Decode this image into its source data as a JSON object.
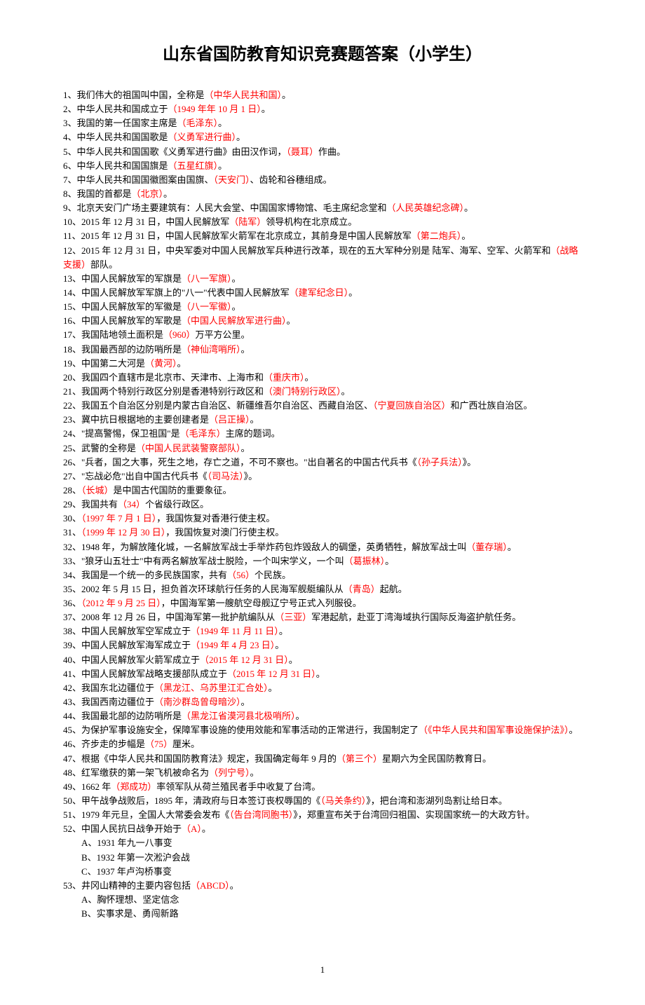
{
  "title": "山东省国防教育知识竞赛题答案（小学生）",
  "items": [
    {
      "num": "1",
      "pre": "、我们伟大的祖国叫中国，全称是",
      "ans": "（中华人民共和国）",
      "post": "。"
    },
    {
      "num": "2",
      "pre": "、中华人民共和国成立于",
      "ans": "（1949 年年 10 月 1 日）",
      "post": "。"
    },
    {
      "num": "3",
      "pre": "、我国的第一任国家主席是",
      "ans": "（毛泽东）",
      "post": "。"
    },
    {
      "num": "4",
      "pre": "、中华人民共和国国歌是",
      "ans": "（义勇军进行曲）",
      "post": "。"
    },
    {
      "num": "5",
      "pre": "、中华人民共和国国歌《义勇军进行曲》由田汉作词，",
      "ans": "（聂耳）",
      "post": "作曲。"
    },
    {
      "num": "6",
      "pre": "、中华人民共和国国旗是",
      "ans": "（五星红旗）",
      "post": "。"
    },
    {
      "num": "7",
      "pre": "、中华人民共和国国徽图案由国旗、",
      "ans": "（天安门）",
      "post": "、齿轮和谷穗组成。"
    },
    {
      "num": "8",
      "pre": "、我国的首都是",
      "ans": "（北京）",
      "post": "。"
    },
    {
      "num": "9",
      "pre": "、北京天安门广场主要建筑有：人民大会堂、中国国家博物馆、毛主席纪念堂和",
      "ans": "（人民英雄纪念碑）",
      "post": "。"
    },
    {
      "num": "10",
      "pre": "、2015 年 12 月 31 日，中国人民解放军",
      "ans": "（陆军）",
      "post": "领导机构在北京成立。"
    },
    {
      "num": "11",
      "pre": "、2015 年 12 月 31 日，中国人民解放军火箭军在北京成立，其前身是中国人民解放军",
      "ans": "（第二炮兵）",
      "post": "。"
    },
    {
      "num": "12",
      "pre": "、2015 年 12 月 31 日，中央军委对中国人民解放军兵种进行改革，现在的五大军种分别是  陆军、海军、空军、火箭军和",
      "ans": "（战略支援）",
      "post": "部队。"
    },
    {
      "num": "13",
      "pre": "、中国人民解放军的军旗是",
      "ans": "（八一军旗）",
      "post": "。"
    },
    {
      "num": "14",
      "pre": "、中国人民解放军军旗上的\"八一\"代表中国人民解放军",
      "ans": "（建军纪念日）",
      "post": "。"
    },
    {
      "num": "15",
      "pre": "、中国人民解放军的军徽是",
      "ans": "（八一军徽）",
      "post": "。"
    },
    {
      "num": "16",
      "pre": "、中国人民解放军的军歌是",
      "ans": "（中国人民解放军进行曲）",
      "post": "。"
    },
    {
      "num": "17",
      "pre": "、我国陆地领土面积是",
      "ans": "（960）",
      "post": "万平方公里。"
    },
    {
      "num": "18",
      "pre": "、我国最西部的边防哨所是",
      "ans": "（神仙湾哨所）",
      "post": "。"
    },
    {
      "num": "19",
      "pre": "、中国第二大河是",
      "ans": "（黄河）",
      "post": "。"
    },
    {
      "num": "20",
      "pre": "、我国四个直辖市是北京市、天津市、上海市和",
      "ans": "（重庆市）",
      "post": "。"
    },
    {
      "num": "21",
      "pre": "、我国两个特别行政区分别是香港特别行政区和",
      "ans": "（澳门特别行政区）",
      "post": "。"
    },
    {
      "num": "22",
      "pre": "、我国五个自治区分别是内蒙古自治区、新疆维吾尔自治区、西藏自治区、",
      "ans": "（宁夏回族自治区）",
      "post": "和广西壮族自治区。"
    },
    {
      "num": "23",
      "pre": "、冀中抗日根据地的主要创建者是",
      "ans": "（吕正操）",
      "post": "。"
    },
    {
      "num": "24",
      "pre": "、\"提高警惕，保卫祖国\"是",
      "ans": "（毛泽东）",
      "post": "主席的题词。"
    },
    {
      "num": "25",
      "pre": "、武警的全称是",
      "ans": "（中国人民武装警察部队）",
      "post": "。"
    },
    {
      "num": "26",
      "pre": "、\"兵者，国之大事，死生之地，存亡之道，不可不察也。\"出自著名的中国古代兵书《",
      "ans": "（孙子兵法）",
      "post": "》。"
    },
    {
      "num": "27",
      "pre": "、\"忘战必危\"出自中国古代兵书《",
      "ans": "（司马法）",
      "post": "》。"
    },
    {
      "num": "28",
      "pre": "、",
      "ans": "（长城）",
      "post": "是中国古代国防的重要象征。"
    },
    {
      "num": "29",
      "pre": "、我国共有",
      "ans": "（34）",
      "post": "个省级行政区。"
    },
    {
      "num": "30",
      "pre": "、",
      "ans": "（1997 年 7 月 1 日）",
      "post": "，我国恢复对香港行使主权。"
    },
    {
      "num": "31",
      "pre": "、",
      "ans": "（1999 年 12 月 30 日）",
      "post": "，我国恢复对澳门行使主权。"
    },
    {
      "num": "32",
      "pre": "、1948 年，为解放隆化城，一名解放军战士手举炸药包炸毁敌人的碉堡，英勇牺牲，解放军战士叫",
      "ans": "（董存瑞）",
      "post": "。"
    },
    {
      "num": "33",
      "pre": "、\"狼牙山五壮士\"中有两名解放军战士脱险，一个叫宋学义，一个叫",
      "ans": "（葛振林）",
      "post": "。"
    },
    {
      "num": "34",
      "pre": "、我国是一个统一的多民族国家，共有",
      "ans": "（56）",
      "post": "个民族。"
    },
    {
      "num": "35",
      "pre": "、2002 年 5 月 15 日，担负首次环球航行任务的人民海军舰艇编队从",
      "ans": "（青岛）",
      "post": "起航。"
    },
    {
      "num": "36",
      "pre": "、",
      "ans": "（2012 年 9 月 25 日）",
      "post": "，中国海军第一艘航空母舰辽宁号正式入列服役。"
    },
    {
      "num": "37",
      "pre": "、2008 年 12 月 26 日，中国海军第一批护航编队从",
      "ans": "（三亚）",
      "post": "军港起航，赴亚丁湾海域执行国际反海盗护航任务。"
    },
    {
      "num": "38",
      "pre": "、中国人民解放军空军成立于",
      "ans": "（1949 年 11 月 11 日）",
      "post": "。"
    },
    {
      "num": "39",
      "pre": "、中国人民解放军海军成立于",
      "ans": "（1949 年 4 月 23 日）",
      "post": "。"
    },
    {
      "num": "40",
      "pre": "、中国人民解放军火箭军成立于",
      "ans": "（2015 年 12 月 31 日）",
      "post": "。"
    },
    {
      "num": "41",
      "pre": "、中国人民解放军战略支援部队成立于",
      "ans": "（2015 年 12 月 31 日）",
      "post": "。"
    },
    {
      "num": "42",
      "pre": "、我国东北边疆位于",
      "ans": "（黑龙江、乌苏里江汇合处）",
      "post": "。"
    },
    {
      "num": "43",
      "pre": "、我国西南边疆位于",
      "ans": "（南沙群岛曾母暗沙）",
      "post": "。"
    },
    {
      "num": "44",
      "pre": "、我国最北部的边防哨所是",
      "ans": "（黑龙江省漠河县北极哨所）",
      "post": "。"
    },
    {
      "num": "45",
      "pre": "、为保护军事设施安全，保障军事设施的使用效能和军事活动的正常进行，我国制定了",
      "ans": "（《中华人民共和国军事设施保护法》）",
      "post": "。"
    },
    {
      "num": "46",
      "pre": "、齐步走的步幅是",
      "ans": "（75）",
      "post": "厘米。"
    },
    {
      "num": "47",
      "pre": "、根据《中华人民共和国国防教育法》规定，我国确定每年 9 月的",
      "ans": "（第三个）",
      "post": "星期六为全民国防教育日。"
    },
    {
      "num": "48",
      "pre": "、红军缴获的第一架飞机被命名为",
      "ans": "（列宁号）",
      "post": "。"
    },
    {
      "num": "49",
      "pre": "、1662 年",
      "ans": "（郑成功）",
      "post": "率领军队从荷兰殖民者手中收复了台湾。"
    },
    {
      "num": "50",
      "pre": "、甲午战争战败后，1895 年，清政府与日本签订丧权辱国的《",
      "ans": "（马关条约）",
      "post": "》，把台湾和澎湖列岛割让给日本。"
    },
    {
      "num": "51",
      "pre": "、1979 年元旦，全国人大常委会发布《",
      "ans": "（告台湾同胞书）",
      "post": "》，郑重宣布关于台湾回归祖国、实现国家统一的大政方针。"
    },
    {
      "num": "52",
      "pre": "、中国人民抗日战争开始于",
      "ans": "（A）",
      "post": "。",
      "subs": [
        "A、1931 年九一八事变",
        "B、1932 年第一次淞沪会战",
        "C、1937 年卢沟桥事变"
      ]
    },
    {
      "num": "53",
      "pre": "、井冈山精神的主要内容包括",
      "ans": "（ABCD）",
      "post": "。",
      "subs": [
        "A、胸怀理想、坚定信念",
        "B、实事求是、勇闯新路"
      ]
    }
  ],
  "page_number": "1"
}
